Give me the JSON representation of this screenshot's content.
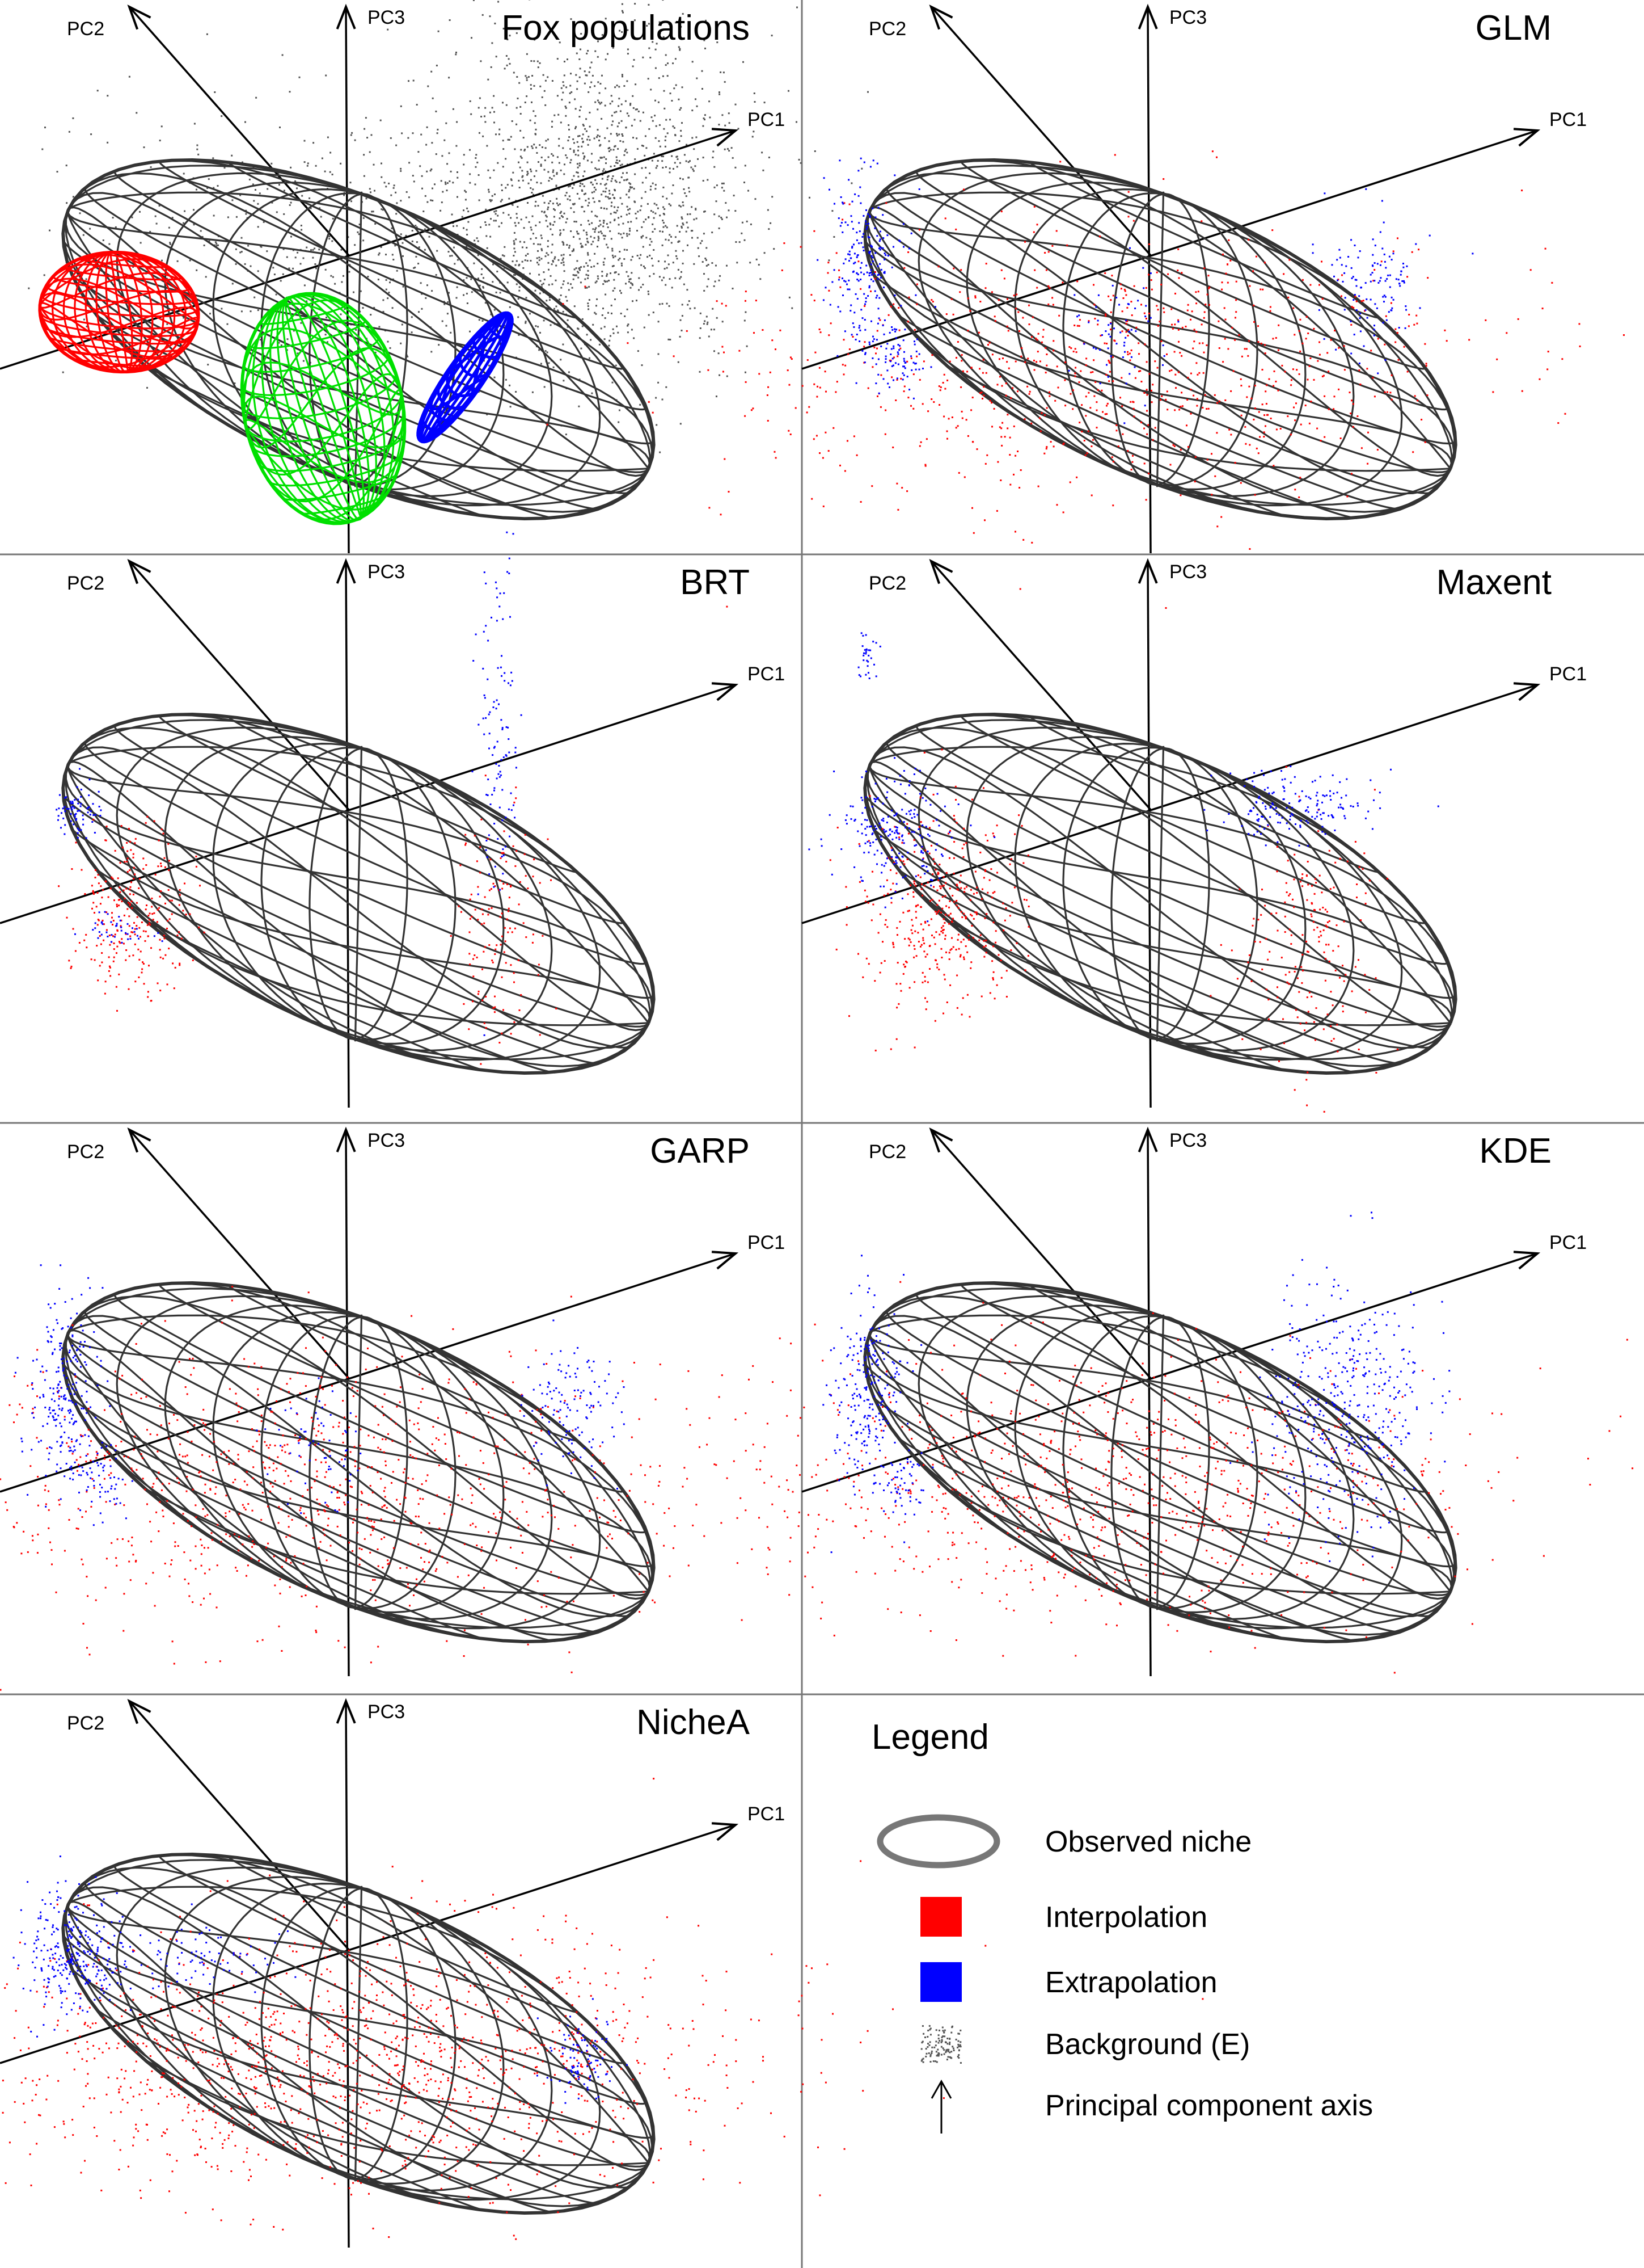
{
  "axes": {
    "pc1": "PC1",
    "pc2": "PC2",
    "pc3": "PC3"
  },
  "panels": [
    {
      "id": "fox",
      "title": "Fox populations",
      "scatter": [],
      "populations": [
        {
          "name": "red",
          "color": "#ff0000"
        },
        {
          "name": "green",
          "color": "#00e000"
        },
        {
          "name": "blue",
          "color": "#0000ff"
        }
      ],
      "background_color": "#555555"
    },
    {
      "id": "glm",
      "title": "GLM",
      "pattern": "broad"
    },
    {
      "id": "brt",
      "title": "BRT",
      "pattern": "clusters"
    },
    {
      "id": "maxent",
      "title": "Maxent",
      "pattern": "clusters_top"
    },
    {
      "id": "garp",
      "title": "GARP",
      "pattern": "broad"
    },
    {
      "id": "kde",
      "title": "KDE",
      "pattern": "broad_right"
    },
    {
      "id": "nichea",
      "title": "NicheA",
      "pattern": "dense"
    }
  ],
  "legend": {
    "title": "Legend",
    "items": [
      {
        "key": "observed-niche",
        "label": "Observed niche",
        "symbol": "ellipse",
        "color": "#777777"
      },
      {
        "key": "interpolation",
        "label": "Interpolation",
        "symbol": "square",
        "color": "#ff0000"
      },
      {
        "key": "extrapolation",
        "label": "Extrapolation",
        "symbol": "square",
        "color": "#0000ff"
      },
      {
        "key": "background",
        "label": "Background (E)",
        "symbol": "dots",
        "color": "#555555"
      },
      {
        "key": "pc-axis",
        "label": "Principal component axis",
        "symbol": "arrow",
        "color": "#000000"
      }
    ]
  },
  "colors": {
    "interpolation": "#ff0000",
    "extrapolation": "#0000ff",
    "wireframe": "#333333",
    "grid": "#777777"
  }
}
